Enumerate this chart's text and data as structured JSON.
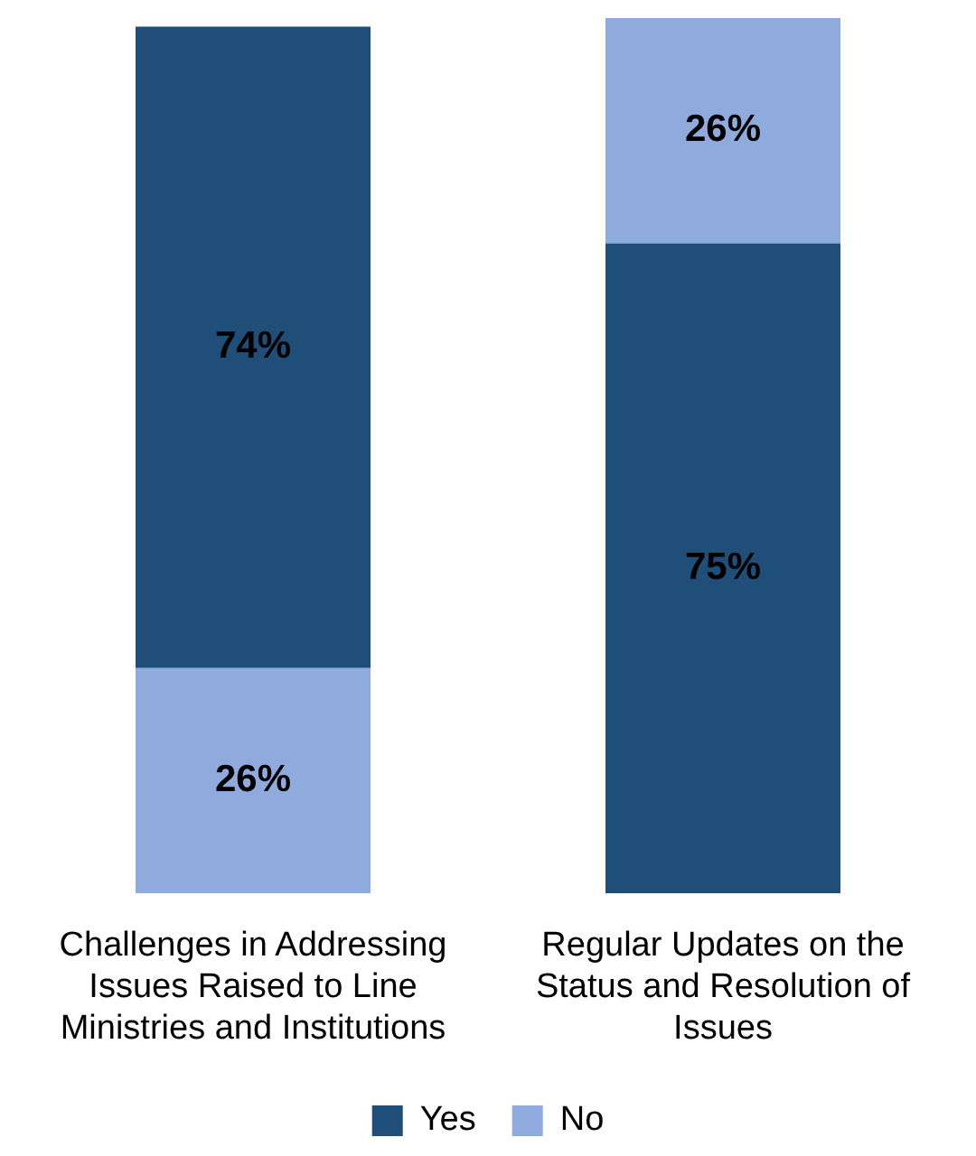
{
  "chart_data": {
    "type": "bar",
    "stacked": true,
    "categories": [
      "Challenges in Addressing Issues Raised to Line Ministries and Institutions",
      "Regular Updates on the Status and Resolution of Issues"
    ],
    "series": [
      {
        "name": "No",
        "color": "#8faadc",
        "values": [
          26,
          null
        ],
        "value_labels": [
          "26%",
          null
        ]
      },
      {
        "name": "Yes",
        "color": "#1f4e79",
        "values": [
          74,
          75
        ],
        "value_labels": [
          "74%",
          "75%"
        ]
      },
      {
        "color": "#8faadc",
        "values": [
          null,
          26
        ],
        "value_labels": [
          null,
          "26%"
        ]
      }
    ],
    "legend": "bottom",
    "tick_labels": "x",
    "grid": false
  }
}
